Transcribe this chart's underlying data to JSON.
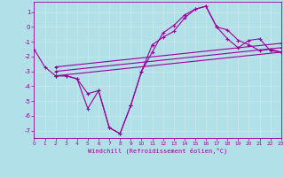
{
  "background_color": "#b2e0e8",
  "grid_color": "#d0eef0",
  "line_color": "#990099",
  "xlabel": "Windchill (Refroidissement éolien,°C)",
  "xlim": [
    0,
    23
  ],
  "ylim": [
    -7.5,
    1.7
  ],
  "yticks": [
    1,
    0,
    -1,
    -2,
    -3,
    -4,
    -5,
    -6,
    -7
  ],
  "xticks": [
    0,
    1,
    2,
    3,
    4,
    5,
    6,
    7,
    8,
    9,
    10,
    11,
    12,
    13,
    14,
    15,
    16,
    17,
    18,
    19,
    20,
    21,
    22,
    23
  ],
  "series": [
    {
      "x": [
        0,
        1,
        2,
        3,
        4,
        5,
        6,
        7,
        8,
        9,
        10,
        11,
        12,
        13,
        14,
        15,
        16,
        17,
        18,
        19,
        20,
        21,
        22,
        23
      ],
      "y": [
        -1.5,
        -2.7,
        -3.3,
        -3.3,
        -3.5,
        -4.5,
        -4.3,
        -6.8,
        -7.2,
        -5.3,
        -3.0,
        -1.2,
        -0.7,
        -0.3,
        0.6,
        1.2,
        1.4,
        0.0,
        -0.2,
        -0.9,
        -1.2,
        -1.6,
        -1.5,
        -1.7
      ]
    },
    {
      "x": [
        2,
        3,
        4,
        5,
        6,
        7,
        8,
        9,
        10,
        11,
        12,
        13,
        14,
        15,
        16,
        17,
        18,
        19,
        20,
        21,
        22,
        23
      ],
      "y": [
        -3.3,
        -3.3,
        -3.5,
        -5.5,
        -4.3,
        -6.8,
        -7.2,
        -5.3,
        -3.0,
        -1.7,
        -0.4,
        0.1,
        0.8,
        1.2,
        1.4,
        0.0,
        -0.8,
        -1.4,
        -0.9,
        -0.8,
        -1.6,
        -1.7
      ]
    },
    {
      "x": [
        2,
        23
      ],
      "y": [
        -3.3,
        -1.7
      ]
    },
    {
      "x": [
        2,
        23
      ],
      "y": [
        -3.0,
        -1.4
      ]
    },
    {
      "x": [
        2,
        23
      ],
      "y": [
        -2.7,
        -1.1
      ]
    }
  ]
}
